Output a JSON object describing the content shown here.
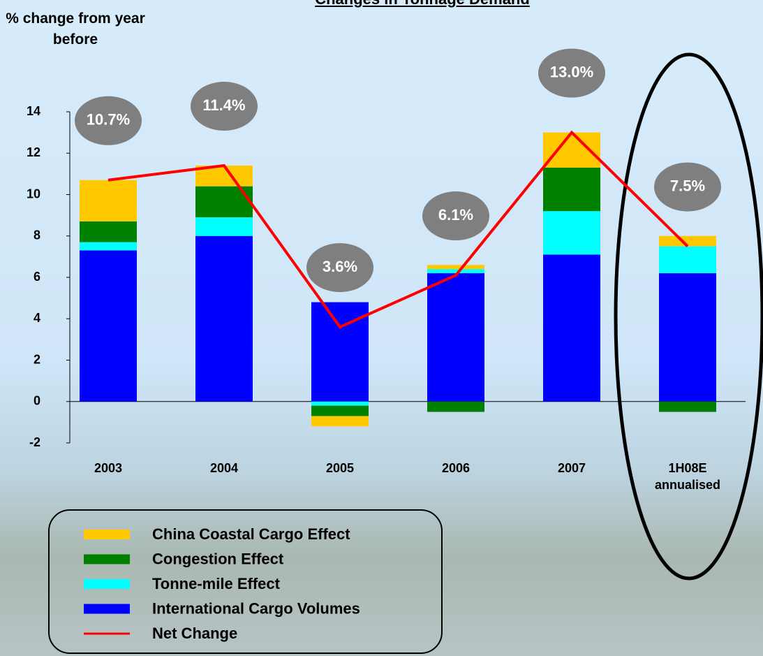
{
  "chart_data": {
    "type": "bar",
    "title": "Changes in Tonnage Demand",
    "y_label": "% change from year before",
    "categories": [
      "2003",
      "2004",
      "2005",
      "2006",
      "2007",
      "1H08E annualised"
    ],
    "series": [
      {
        "name": "China Coastal Cargo Effect",
        "color": "#ffc800",
        "type": "bar",
        "values": [
          2.0,
          1.0,
          -0.5,
          0.2,
          1.7,
          0.5
        ]
      },
      {
        "name": "Congestion Effect",
        "color": "#008000",
        "type": "bar",
        "values": [
          1.0,
          1.5,
          -0.5,
          -0.5,
          2.1,
          -0.5
        ]
      },
      {
        "name": "Tonne-mile Effect",
        "color": "#00ffff",
        "type": "bar",
        "values": [
          0.4,
          0.9,
          -0.2,
          0.2,
          2.1,
          1.3
        ]
      },
      {
        "name": "International Cargo Volumes",
        "color": "#0000ff",
        "type": "bar",
        "values": [
          7.3,
          8.0,
          4.8,
          6.2,
          7.1,
          6.2
        ]
      },
      {
        "name": "Net Change",
        "color": "#ff0000",
        "type": "line",
        "values": [
          10.7,
          11.4,
          3.6,
          6.1,
          13.0,
          7.5
        ],
        "value_labels": [
          "10.7%",
          "11.4%",
          "3.6%",
          "6.1%",
          "13.0%",
          "7.5%"
        ]
      }
    ],
    "ylim": [
      -2,
      14
    ],
    "yticks": [
      -2,
      0,
      2,
      4,
      6,
      8,
      10,
      12,
      14
    ],
    "grid": false
  }
}
